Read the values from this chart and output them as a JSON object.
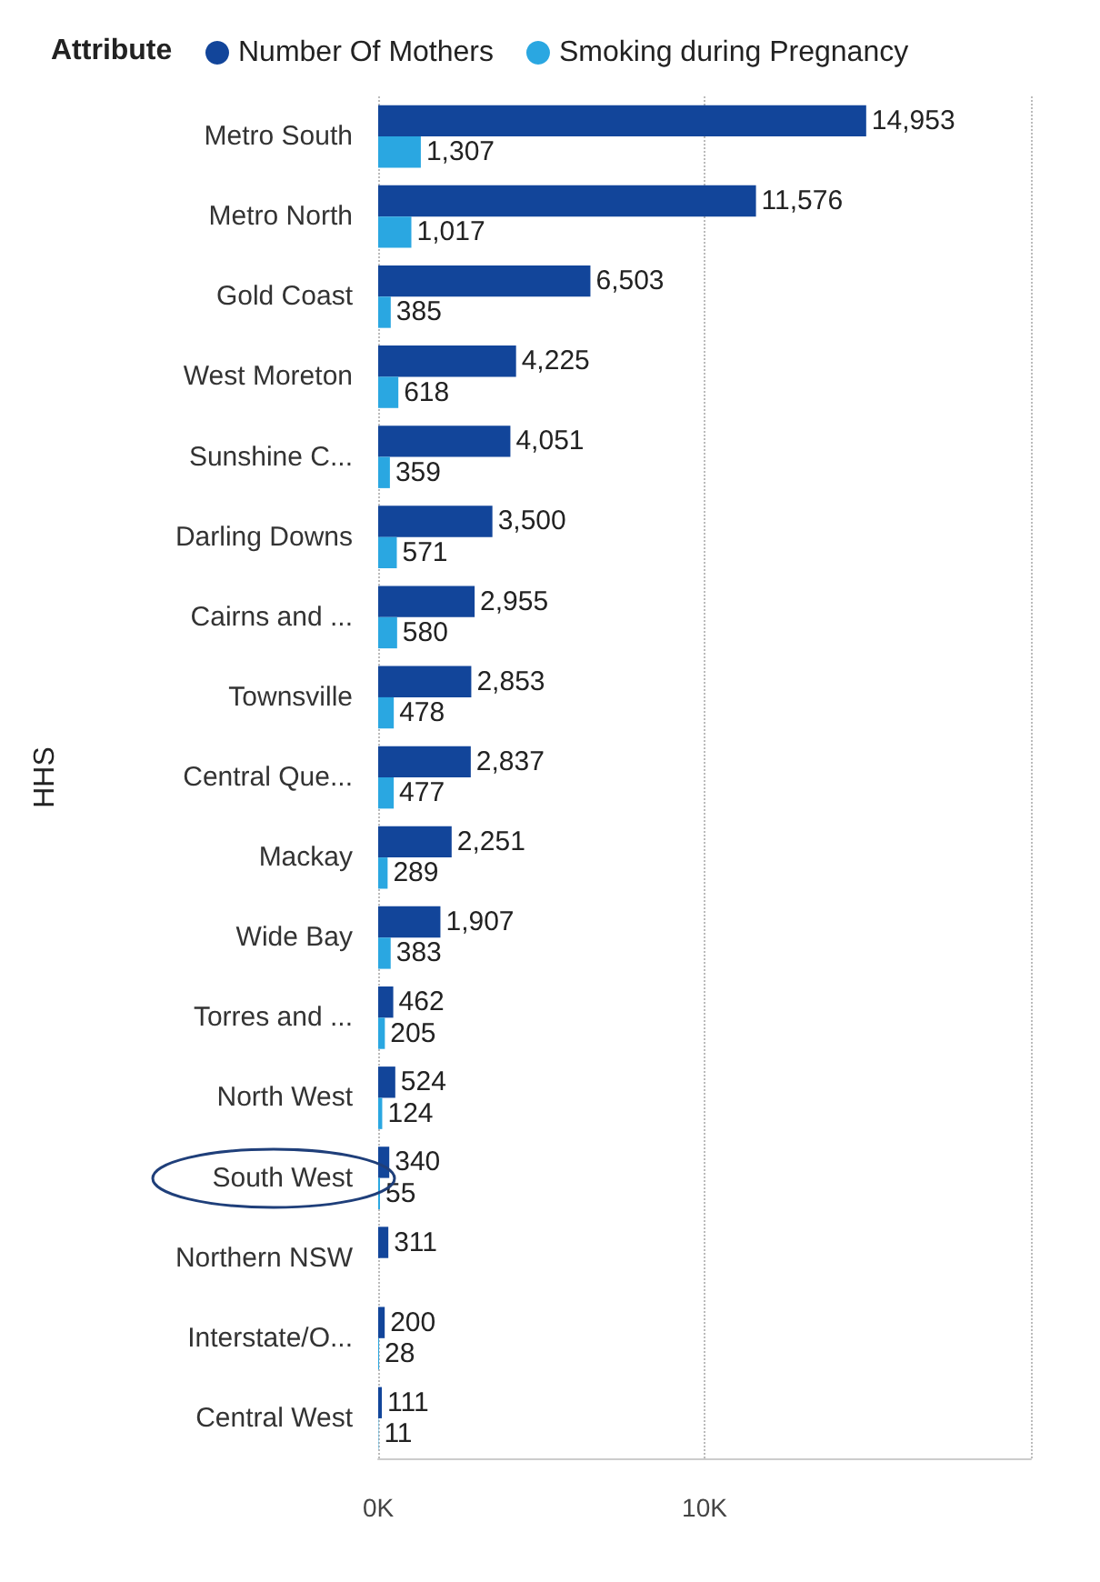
{
  "chart_data": {
    "type": "bar",
    "orientation": "horizontal",
    "ylabel": "HHS",
    "legend_title": "Attribute",
    "legend": "top left",
    "grid": "x",
    "categories": [
      "Metro South",
      "Metro North",
      "Gold Coast",
      "West Moreton",
      "Sunshine C...",
      "Darling Downs",
      "Cairns and ...",
      "Townsville",
      "Central Que...",
      "Mackay",
      "Wide Bay",
      "Torres and ...",
      "North West",
      "South West",
      "Northern NSW",
      "Interstate/O...",
      "Central West"
    ],
    "series": [
      {
        "name": "Number Of Mothers",
        "color": "#12459a",
        "values": [
          14953,
          11576,
          6503,
          4225,
          4051,
          3500,
          2955,
          2853,
          2837,
          2251,
          1907,
          462,
          524,
          340,
          311,
          200,
          111
        ],
        "value_labels": [
          "14,953",
          "11,576",
          "6,503",
          "4,225",
          "4,051",
          "3,500",
          "2,955",
          "2,853",
          "2,837",
          "2,251",
          "1,907",
          "462",
          "524",
          "340",
          "311",
          "200",
          "111"
        ]
      },
      {
        "name": "Smoking during Pregnancy",
        "color": "#2aa7e1",
        "values": [
          1307,
          1017,
          385,
          618,
          359,
          571,
          580,
          478,
          477,
          289,
          383,
          205,
          124,
          55,
          null,
          28,
          11
        ],
        "value_labels": [
          "1,307",
          "1,017",
          "385",
          "618",
          "359",
          "571",
          "580",
          "478",
          "477",
          "289",
          "383",
          "205",
          "124",
          "55",
          null,
          "28",
          "11"
        ]
      }
    ],
    "xlim": [
      0,
      20000
    ],
    "xticks": [
      {
        "value": 0,
        "label": "0K"
      },
      {
        "value": 10000,
        "label": "10K"
      },
      {
        "value": 20000,
        "label": null
      }
    ]
  }
}
